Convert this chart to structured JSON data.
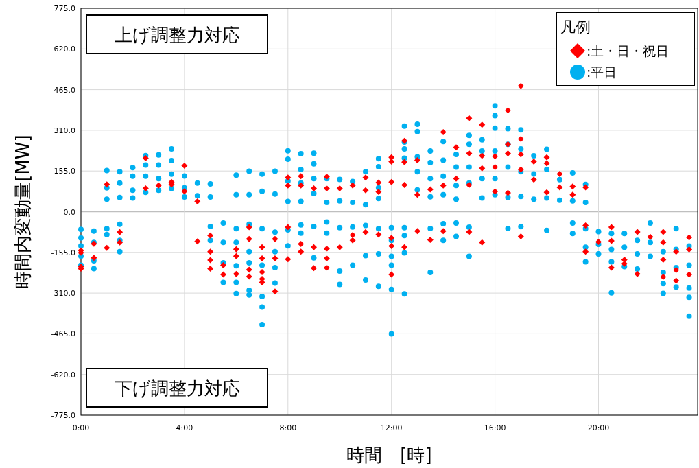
{
  "chart_data": {
    "type": "scatter",
    "xlabel": "時間　[時]",
    "ylabel": "時間内変動量[MW]",
    "legend_title": "凡例",
    "annotations": [
      "上げ調整力対応",
      "下げ調整力対応"
    ],
    "xlim": [
      0,
      23.83
    ],
    "xticks": [
      {
        "value": 0,
        "label": "0:00"
      },
      {
        "value": 4,
        "label": "4:00"
      },
      {
        "value": 8,
        "label": "8:00"
      },
      {
        "value": 12,
        "label": "12:00"
      },
      {
        "value": 16,
        "label": "16:00"
      },
      {
        "value": 20,
        "label": "20:00"
      }
    ],
    "ylim": [
      -775,
      775
    ],
    "yticks": [
      {
        "value": -775,
        "label": "-775.0"
      },
      {
        "value": -620,
        "label": "-620.0"
      },
      {
        "value": -465,
        "label": "-465.0"
      },
      {
        "value": -310,
        "label": "-310.0"
      },
      {
        "value": -155,
        "label": "-155.0"
      },
      {
        "value": 0,
        "label": "0.0"
      },
      {
        "value": 155,
        "label": "155.0"
      },
      {
        "value": 310,
        "label": "310.0"
      },
      {
        "value": 465,
        "label": "465.0"
      },
      {
        "value": 620,
        "label": "620.0"
      },
      {
        "value": 775,
        "label": "775.0"
      }
    ],
    "grid": true,
    "legend": "top right",
    "series": [
      {
        "name": ":平日",
        "color": "#00b0f0",
        "marker": "circle",
        "x": [
          0,
          0,
          0,
          0,
          0,
          0.5,
          0.5,
          0.5,
          0.5,
          1,
          1,
          1,
          1,
          1,
          1.5,
          1.5,
          1.5,
          1.5,
          1.5,
          1.5,
          2,
          2,
          2,
          2,
          2.5,
          2.5,
          2.5,
          2.5,
          3,
          3,
          3,
          3,
          3.5,
          3.5,
          3.5,
          3.5,
          4,
          4,
          4,
          4.5,
          4.5,
          5,
          5,
          5,
          5,
          5.5,
          5.5,
          5.5,
          5.5,
          6,
          6,
          6,
          6,
          6,
          6,
          6,
          6.5,
          6.5,
          6.5,
          6.5,
          6.5,
          6.5,
          6.5,
          7,
          7,
          7,
          7,
          7,
          7,
          7,
          7.5,
          7.5,
          7.5,
          7.5,
          7.5,
          7.5,
          8,
          8,
          8,
          8,
          8,
          8,
          8.5,
          8.5,
          8.5,
          8.5,
          8.5,
          8.5,
          9,
          9,
          9,
          9,
          9,
          9,
          9.5,
          9.5,
          9.5,
          9.5,
          10,
          10,
          10,
          10,
          10,
          10.5,
          10.5,
          10.5,
          10.5,
          11,
          11,
          11,
          11,
          11,
          11.5,
          11.5,
          11.5,
          11.5,
          11.5,
          11.5,
          11.5,
          12,
          12,
          12,
          12,
          12,
          12,
          12.5,
          12.5,
          12.5,
          12.5,
          12.5,
          12.5,
          12.5,
          12.5,
          13,
          13,
          13,
          13,
          13,
          13.5,
          13.5,
          13.5,
          13.5,
          13.5,
          13.5,
          14,
          14,
          14,
          14,
          14,
          14,
          14.5,
          14.5,
          14.5,
          14.5,
          14.5,
          14.5,
          15,
          15,
          15,
          15,
          15,
          15,
          15.5,
          15.5,
          15.5,
          15.5,
          16,
          16,
          16,
          16,
          16,
          16,
          16.5,
          16.5,
          16.5,
          16.5,
          16.5,
          17,
          17,
          17,
          17,
          17,
          17.5,
          17.5,
          17.5,
          18,
          18,
          18,
          18,
          18.5,
          18.5,
          19,
          19,
          19,
          19,
          19.5,
          19.5,
          19.5,
          19.5,
          19.5,
          20,
          20,
          20,
          20.5,
          20.5,
          20.5,
          20.5,
          21,
          21,
          21,
          21.5,
          21.5,
          21.5,
          22,
          22,
          22,
          22.5,
          22.5,
          22.5,
          22.5,
          23,
          23,
          23,
          23,
          23.5,
          23.5,
          23.5,
          23.5,
          23.5
        ],
        "values": [
          -67,
          -100,
          -130,
          -169,
          -204,
          -74,
          -117,
          -187,
          -217,
          157,
          91,
          48,
          -65,
          -87,
          152,
          109,
          54,
          -48,
          -109,
          -152,
          168,
          135,
          82,
          52,
          214,
          178,
          135,
          74,
          216,
          178,
          126,
          82,
          239,
          195,
          143,
          89,
          136,
          91,
          56,
          109,
          61,
          106,
          56,
          -56,
          -109,
          -43,
          -117,
          -195,
          -269,
          139,
          65,
          -65,
          -117,
          -206,
          -269,
          -312,
          154,
          65,
          -48,
          -152,
          -195,
          -299,
          -317,
          143,
          78,
          -65,
          -204,
          -323,
          -363,
          -430,
          154,
          67,
          -78,
          -152,
          -213,
          -272,
          232,
          200,
          117,
          39,
          -69,
          -130,
          221,
          161,
          109,
          39,
          -50,
          -82,
          223,
          182,
          126,
          69,
          -56,
          -176,
          126,
          35,
          -39,
          -82,
          123,
          41,
          -61,
          -226,
          -277,
          115,
          35,
          -58,
          -204,
          152,
          27,
          -52,
          -167,
          -260,
          202,
          171,
          91,
          50,
          -65,
          -161,
          -284,
          -61,
          -109,
          -170,
          -204,
          -296,
          -465,
          326,
          265,
          239,
          204,
          -61,
          -91,
          -157,
          -313,
          333,
          305,
          209,
          152,
          83,
          231,
          187,
          126,
          57,
          -64,
          -231,
          267,
          196,
          135,
          65,
          -46,
          -109,
          218,
          170,
          100,
          48,
          -43,
          -94,
          291,
          257,
          170,
          109,
          -59,
          -170,
          274,
          231,
          126,
          52,
          403,
          366,
          318,
          231,
          126,
          65,
          316,
          257,
          170,
          54,
          -64,
          312,
          239,
          152,
          58,
          -57,
          213,
          144,
          48,
          238,
          161,
          52,
          -71,
          122,
          44,
          148,
          41,
          -43,
          -83,
          104,
          35,
          -65,
          -135,
          -191,
          -76,
          -124,
          -161,
          -83,
          -144,
          -191,
          -309,
          -83,
          -135,
          -209,
          -109,
          -161,
          -218,
          -43,
          -117,
          -170,
          -152,
          -231,
          -274,
          -311,
          -65,
          -144,
          -213,
          -287,
          -131,
          -204,
          -291,
          -326,
          -398
        ]
      },
      {
        "name": ":土・日・祝日",
        "color": "#ff0000",
        "marker": "diamond",
        "x": [
          0,
          0,
          0,
          0,
          0.5,
          0.5,
          1,
          1,
          1.5,
          1.5,
          2.5,
          2.5,
          3,
          3.5,
          3.5,
          4,
          4,
          4.5,
          4.5,
          5,
          5,
          5,
          5,
          5.5,
          5.5,
          6,
          6,
          6,
          6.5,
          6.5,
          6.5,
          6.5,
          7,
          7,
          7,
          7,
          7,
          7.5,
          7.5,
          7.5,
          8,
          8,
          8,
          8,
          8.5,
          8.5,
          8.5,
          8.5,
          9,
          9,
          9,
          9.5,
          9.5,
          9.5,
          9.5,
          9.5,
          10,
          10,
          10.5,
          10.5,
          10.5,
          11,
          11,
          11,
          11.5,
          11.5,
          11.5,
          12,
          12,
          12,
          12,
          12,
          12,
          12.5,
          12.5,
          12.5,
          12.5,
          13,
          13,
          13,
          13.5,
          13.5,
          14,
          14,
          14,
          14.5,
          14.5,
          15,
          15,
          15,
          15,
          15.5,
          15.5,
          15.5,
          15.5,
          16,
          16,
          16,
          16.5,
          16.5,
          16.5,
          16.5,
          17,
          17,
          17,
          17,
          17,
          17.5,
          17.5,
          18,
          18,
          18,
          18.5,
          18.5,
          19,
          19,
          19.5,
          19.5,
          19.5,
          20,
          20.5,
          20.5,
          20.5,
          21,
          21,
          21.5,
          21.5,
          22,
          22.5,
          22.5,
          22.5,
          22.5,
          23,
          23,
          23,
          23.5,
          23.5,
          23.5
        ],
        "values": [
          -148,
          -156,
          -209,
          -217,
          -122,
          -176,
          104,
          -138,
          -78,
          -117,
          204,
          89,
          100,
          113,
          104,
          175,
          78,
          39,
          -113,
          -91,
          -152,
          -184,
          -217,
          -204,
          -239,
          -143,
          -169,
          -237,
          -59,
          -104,
          -221,
          -247,
          -135,
          -178,
          -230,
          -256,
          -269,
          -104,
          -178,
          -304,
          130,
          100,
          -59,
          -181,
          135,
          100,
          -123,
          -152,
          89,
          -135,
          -215,
          133,
          89,
          -141,
          -178,
          -214,
          89,
          -135,
          100,
          -89,
          -109,
          130,
          82,
          -78,
          111,
          76,
          -87,
          207,
          191,
          113,
          -100,
          -131,
          -239,
          270,
          189,
          102,
          -135,
          196,
          65,
          -74,
          85,
          -107,
          303,
          100,
          -74,
          245,
          126,
          356,
          222,
          102,
          -77,
          331,
          213,
          165,
          -117,
          211,
          170,
          77,
          386,
          257,
          222,
          72,
          479,
          277,
          218,
          161,
          -94,
          191,
          122,
          207,
          184,
          74,
          144,
          93,
          96,
          65,
          93,
          -52,
          -152,
          -115,
          -59,
          -111,
          -213,
          -183,
          -198,
          -77,
          -237,
          -96,
          -77,
          -117,
          -183,
          -248,
          -152,
          -222,
          -263,
          -98,
          -144,
          -239
        ]
      }
    ]
  }
}
